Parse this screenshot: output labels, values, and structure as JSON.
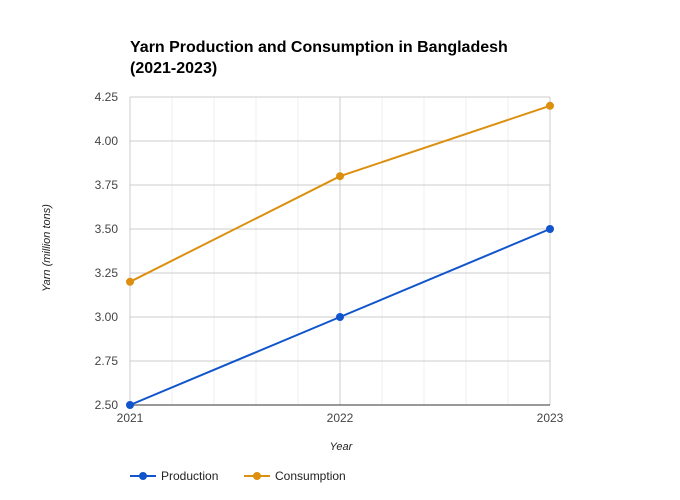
{
  "chart_data": {
    "type": "line",
    "title_lines": [
      "Yarn Production and Consumption in Bangladesh",
      "(2021-2023)"
    ],
    "xlabel": "Year",
    "ylabel": "Yarn (million tons)",
    "x": [
      "2021",
      "2022",
      "2023"
    ],
    "ylim": [
      2.5,
      4.25
    ],
    "yticks": [
      "2.50",
      "2.75",
      "3.00",
      "3.25",
      "3.50",
      "3.75",
      "4.00",
      "4.25"
    ],
    "grid": true,
    "legend_position": "bottom-left",
    "series": [
      {
        "name": "Production",
        "color": "#1155cc",
        "values": [
          2.5,
          3.0,
          3.5
        ]
      },
      {
        "name": "Consumption",
        "color": "#dd8f0f",
        "values": [
          3.2,
          3.8,
          4.2
        ]
      }
    ]
  }
}
